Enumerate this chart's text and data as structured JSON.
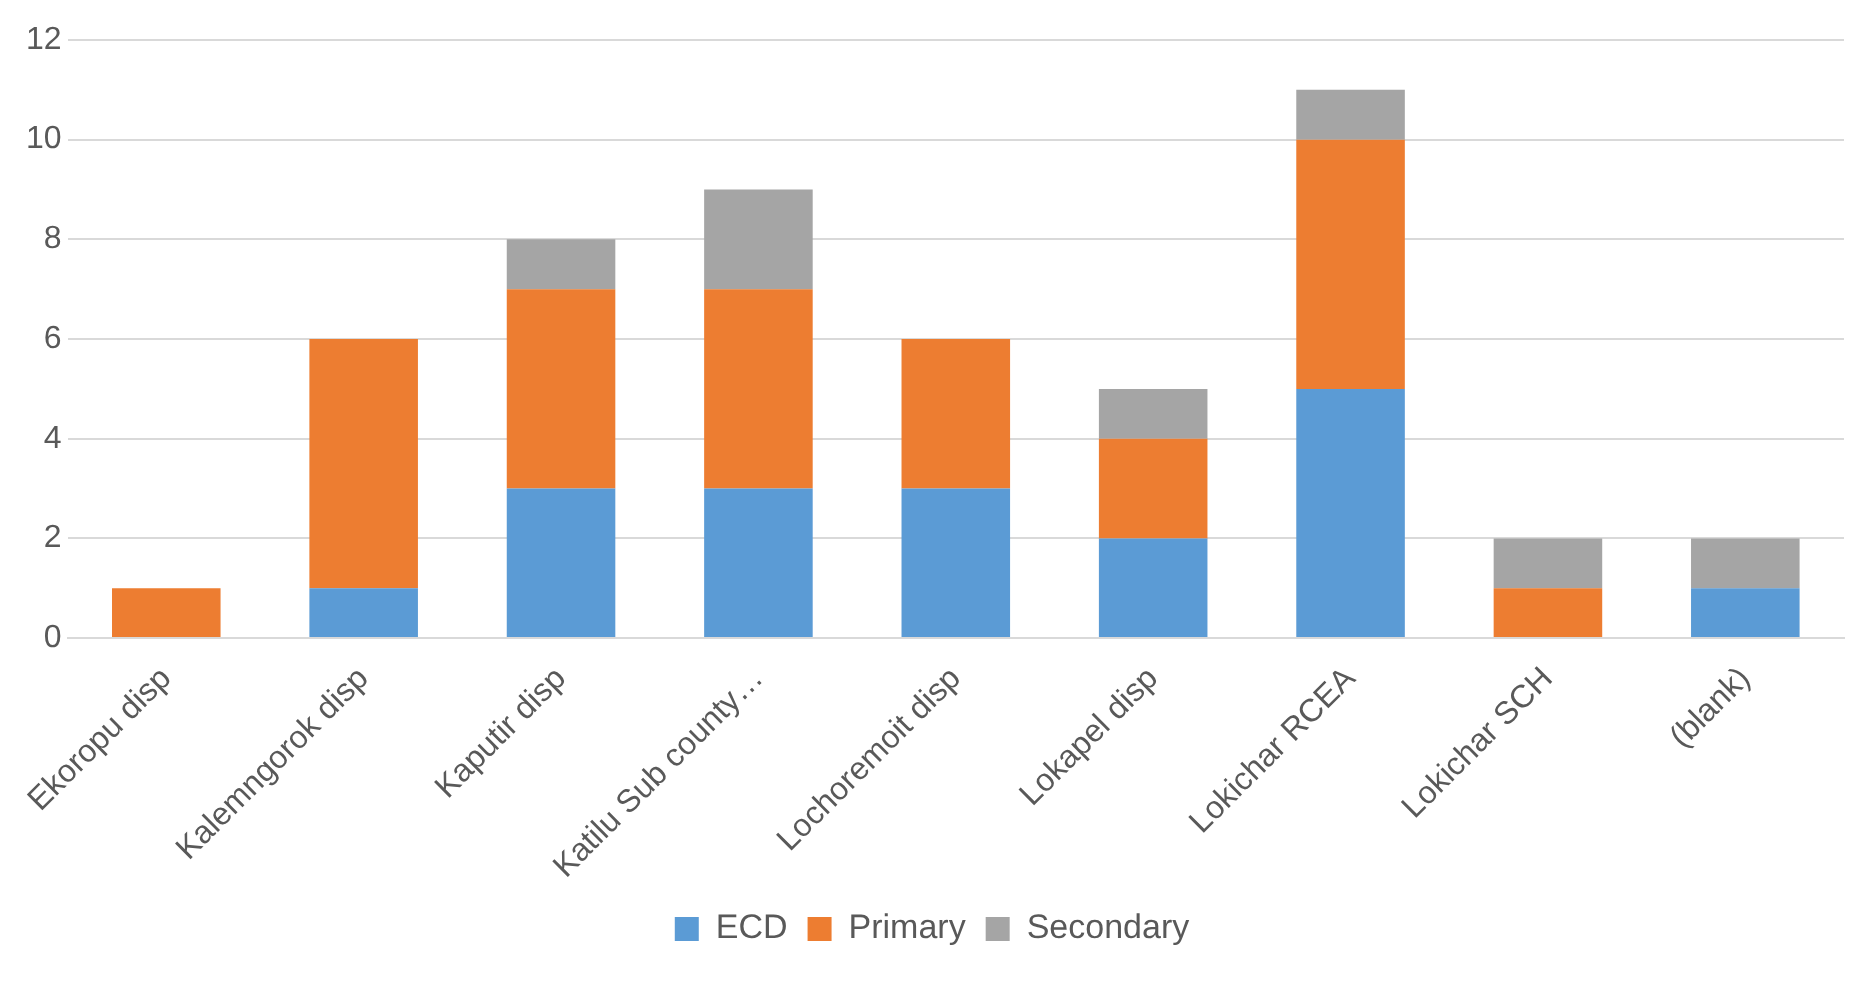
{
  "chart_data": {
    "type": "bar",
    "stacked": true,
    "categories": [
      "Ekoropu disp",
      "Kalemngorok disp",
      "Kaputir disp",
      "Katilu Sub county…",
      "Lochoremoit disp",
      "Lokapel disp",
      "Lokichar RCEA",
      "Lokichar SCH",
      "(blank)"
    ],
    "series": [
      {
        "name": "ECD",
        "color": "#5b9bd5",
        "values": [
          0,
          1,
          3,
          3,
          3,
          2,
          5,
          0,
          1
        ]
      },
      {
        "name": "Primary",
        "color": "#ed7d31",
        "values": [
          1,
          5,
          4,
          4,
          3,
          2,
          5,
          1,
          0
        ]
      },
      {
        "name": "Secondary",
        "color": "#a5a5a5",
        "values": [
          0,
          0,
          1,
          2,
          0,
          1,
          1,
          1,
          1
        ]
      }
    ],
    "ylim": [
      0,
      12
    ],
    "yticks": [
      0,
      2,
      4,
      6,
      8,
      10,
      12
    ],
    "grid": "y",
    "legend": "bottom"
  }
}
